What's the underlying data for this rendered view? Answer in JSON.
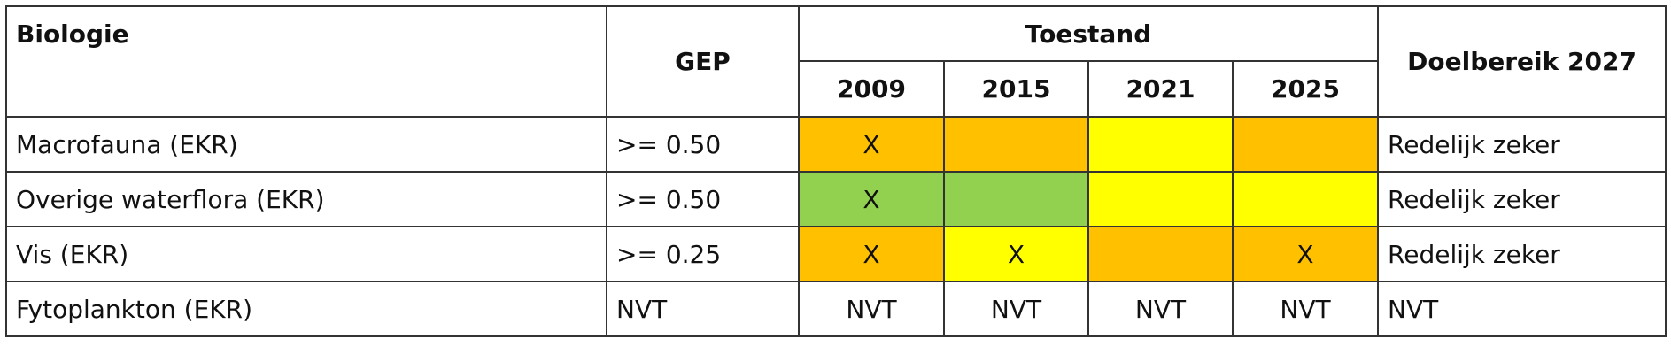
{
  "header": {
    "biologie": "Biologie",
    "gep": "GEP",
    "toestand": "Toestand",
    "years": [
      "2009",
      "2015",
      "2021",
      "2025"
    ],
    "doelbereik": "Doelbereik 2027"
  },
  "rows": [
    {
      "name": "Macrofauna (EKR)",
      "gep": ">= 0.50",
      "cells": [
        {
          "color": "#ffc000",
          "mark": "X"
        },
        {
          "color": "#ffc000"
        },
        {
          "color": "#ffff00"
        },
        {
          "color": "#ffc000"
        }
      ],
      "doelbereik": "Redelijk zeker"
    },
    {
      "name": "Overige waterflora (EKR)",
      "gep": ">= 0.50",
      "cells": [
        {
          "color": "#92d050",
          "mark": "X"
        },
        {
          "color": "#92d050"
        },
        {
          "color": "#ffff00"
        },
        {
          "color": "#ffff00"
        }
      ],
      "doelbereik": "Redelijk zeker"
    },
    {
      "name": "Vis (EKR)",
      "gep": ">= 0.25",
      "cells": [
        {
          "color": "#ffc000",
          "mark": "X"
        },
        {
          "color": "#ffff00",
          "mark": "X"
        },
        {
          "color": "#ffc000"
        },
        {
          "color": "#ffc000",
          "mark": "X"
        }
      ],
      "doelbereik": "Redelijk zeker"
    },
    {
      "name": "Fytoplankton (EKR)",
      "gep": "NVT",
      "cells": [
        {
          "mark": "NVT"
        },
        {
          "mark": "NVT"
        },
        {
          "mark": "NVT"
        },
        {
          "mark": "NVT"
        }
      ],
      "doelbereik": "NVT"
    }
  ]
}
